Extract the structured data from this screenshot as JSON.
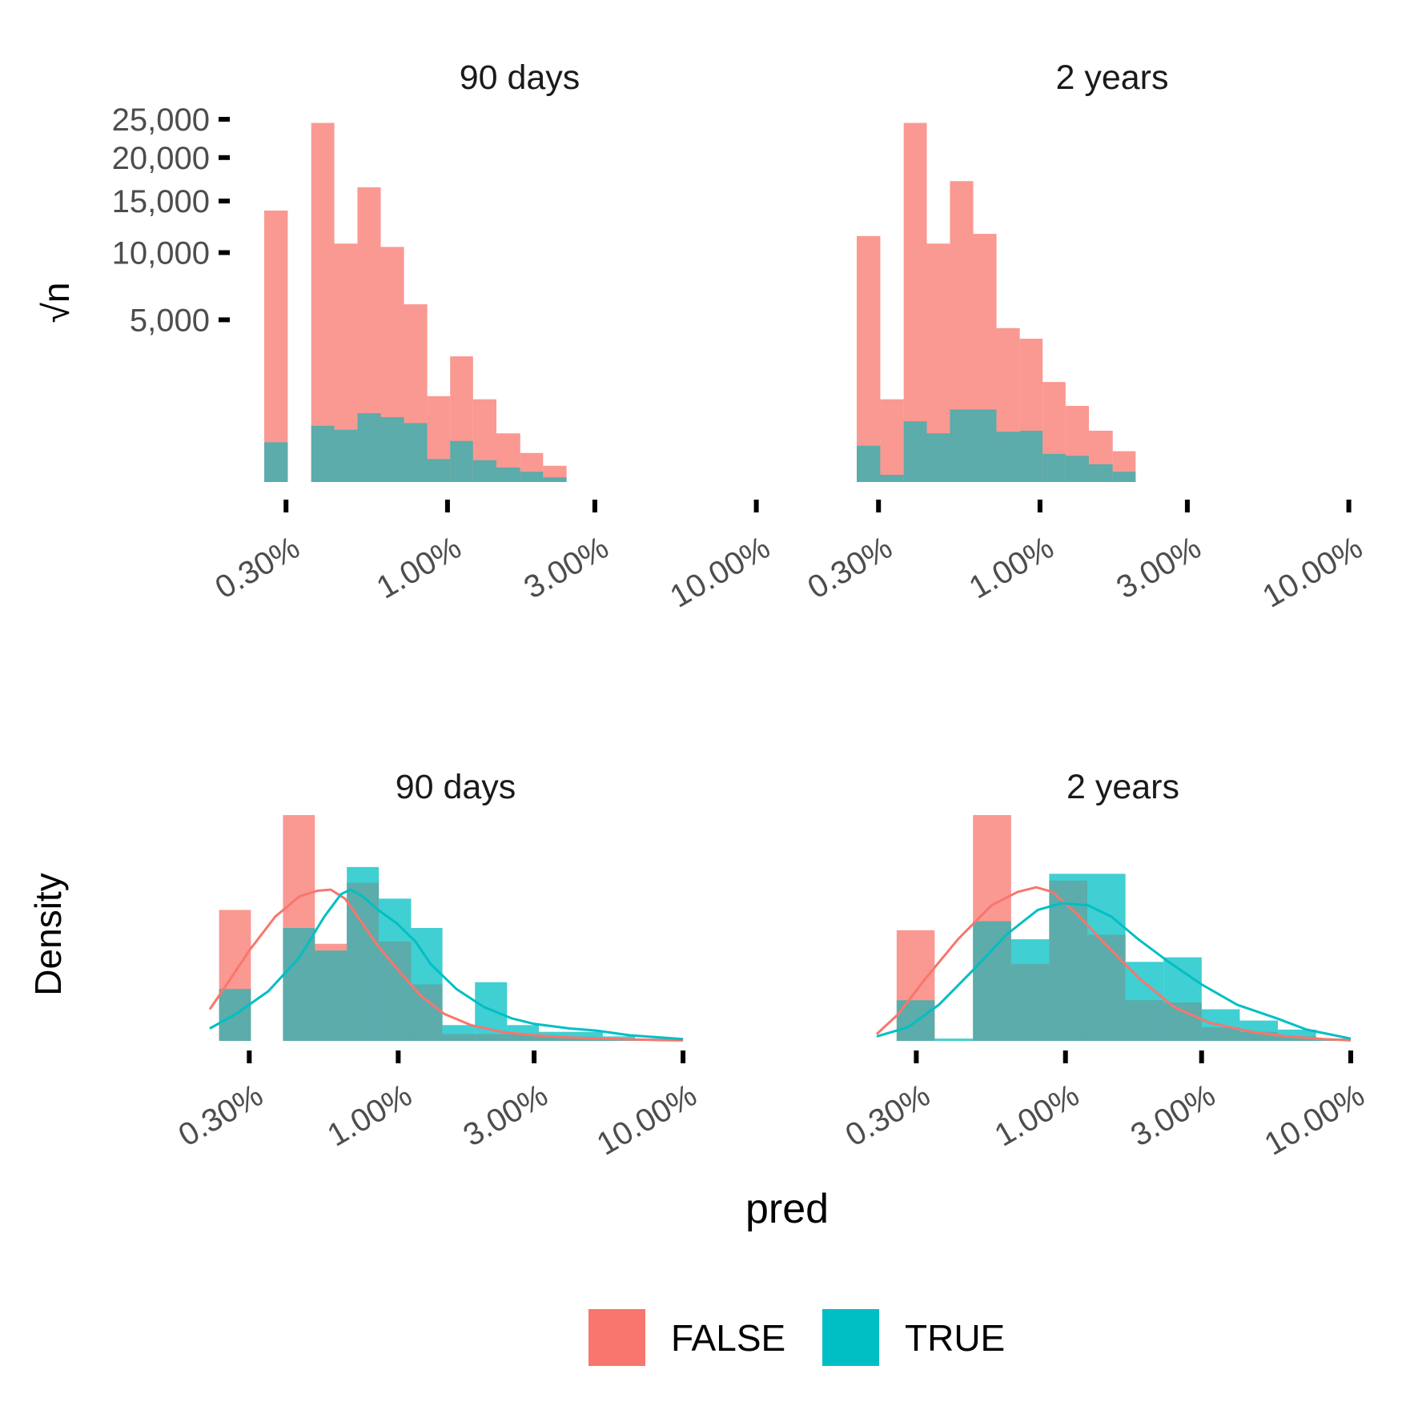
{
  "colors": {
    "FALSE": "#F8766D",
    "TRUE": "#00BFC4",
    "overlap": "#5BACAA",
    "tick": "#000000"
  },
  "shared": {
    "xlabel": "pred",
    "x_ticks": [
      {
        "value": 0.003,
        "label": "0.30%"
      },
      {
        "value": 0.01,
        "label": "1.00%"
      },
      {
        "value": 0.03,
        "label": "3.00%"
      },
      {
        "value": 0.1,
        "label": "10.00%"
      }
    ],
    "x_scale": "log10"
  },
  "legend": {
    "position": "bottom",
    "items": [
      {
        "key": "FALSE",
        "label": "FALSE"
      },
      {
        "key": "TRUE",
        "label": "TRUE"
      }
    ]
  },
  "chart_data": [
    {
      "type": "bar",
      "row": "top",
      "panels": [
        {
          "title": "90 days",
          "xlim": [
            0.00255,
            0.115
          ],
          "bins": [
            {
              "x0": 0.00255,
              "x1": 0.00304,
              "false": 14000,
              "true": 300
            },
            {
              "x0": 0.00362,
              "x1": 0.0043,
              "false": 24500,
              "true": 600
            },
            {
              "x0": 0.0043,
              "x1": 0.00511,
              "false": 10800,
              "true": 520
            },
            {
              "x0": 0.00511,
              "x1": 0.00608,
              "false": 16500,
              "true": 900
            },
            {
              "x0": 0.00608,
              "x1": 0.00723,
              "false": 10500,
              "true": 800
            },
            {
              "x0": 0.00723,
              "x1": 0.0086,
              "false": 6000,
              "true": 660
            },
            {
              "x0": 0.0086,
              "x1": 0.0102,
              "false": 1400,
              "true": 100
            },
            {
              "x0": 0.0102,
              "x1": 0.0121,
              "false": 3000,
              "true": 320
            },
            {
              "x0": 0.0121,
              "x1": 0.0144,
              "false": 1300,
              "true": 90
            },
            {
              "x0": 0.0144,
              "x1": 0.0172,
              "false": 450,
              "true": 40
            },
            {
              "x0": 0.0172,
              "x1": 0.0204,
              "false": 160,
              "true": 20
            },
            {
              "x0": 0.0204,
              "x1": 0.0243,
              "false": 50,
              "true": 4
            }
          ],
          "ylabel": "√n",
          "y_scale": "sqrt",
          "ylim": [
            0,
            26000
          ],
          "y_ticks": [
            {
              "value": 5000,
              "label": "5,000"
            },
            {
              "value": 10000,
              "label": "10,000"
            },
            {
              "value": 15000,
              "label": "15,000"
            },
            {
              "value": 20000,
              "label": "20,000"
            },
            {
              "value": 25000,
              "label": "25,000"
            }
          ]
        },
        {
          "title": "2 years",
          "xlim": [
            0.00255,
            0.115
          ],
          "bins": [
            {
              "x0": 0.00255,
              "x1": 0.00304,
              "false": 11500,
              "true": 250
            },
            {
              "x0": 0.00304,
              "x1": 0.00362,
              "false": 1300,
              "true": 10
            },
            {
              "x0": 0.00362,
              "x1": 0.0043,
              "false": 24500,
              "true": 700
            },
            {
              "x0": 0.0043,
              "x1": 0.00511,
              "false": 10800,
              "true": 450
            },
            {
              "x0": 0.00511,
              "x1": 0.00608,
              "false": 17200,
              "true": 1000
            },
            {
              "x0": 0.00608,
              "x1": 0.00723,
              "false": 11700,
              "true": 1000
            },
            {
              "x0": 0.00723,
              "x1": 0.0086,
              "false": 4500,
              "true": 480
            },
            {
              "x0": 0.0086,
              "x1": 0.0102,
              "false": 3900,
              "true": 500
            },
            {
              "x0": 0.0102,
              "x1": 0.0121,
              "false": 1900,
              "true": 150
            },
            {
              "x0": 0.0121,
              "x1": 0.0144,
              "false": 1100,
              "true": 130
            },
            {
              "x0": 0.0144,
              "x1": 0.0172,
              "false": 500,
              "true": 60
            },
            {
              "x0": 0.0172,
              "x1": 0.0204,
              "false": 180,
              "true": 20
            }
          ]
        }
      ]
    },
    {
      "type": "area",
      "row": "bottom",
      "ylabel": "Density",
      "panels": [
        {
          "title": "90 days",
          "xlim": [
            0.00218,
            0.116
          ],
          "bins": [
            {
              "x0": 0.00235,
              "x1": 0.00304,
              "false": 0.58,
              "true": 0.23
            },
            {
              "x0": 0.00304,
              "x1": 0.00394,
              "false": 0,
              "true": 0
            },
            {
              "x0": 0.00394,
              "x1": 0.0051,
              "false": 1.0,
              "true": 0.5
            },
            {
              "x0": 0.0051,
              "x1": 0.0066,
              "false": 0.43,
              "true": 0.4
            },
            {
              "x0": 0.0066,
              "x1": 0.00855,
              "false": 0.7,
              "true": 0.77
            },
            {
              "x0": 0.00855,
              "x1": 0.0111,
              "false": 0.44,
              "true": 0.63
            },
            {
              "x0": 0.0111,
              "x1": 0.0143,
              "false": 0.25,
              "true": 0.5
            },
            {
              "x0": 0.0143,
              "x1": 0.0186,
              "false": 0.03,
              "true": 0.07
            },
            {
              "x0": 0.0186,
              "x1": 0.0241,
              "false": 0.03,
              "true": 0.26
            },
            {
              "x0": 0.0241,
              "x1": 0.0312,
              "false": 0.03,
              "true": 0.07
            },
            {
              "x0": 0.0312,
              "x1": 0.0404,
              "false": 0.02,
              "true": 0.04
            },
            {
              "x0": 0.0404,
              "x1": 0.0523,
              "false": 0.01,
              "true": 0.04
            },
            {
              "x0": 0.0523,
              "x1": 0.0678,
              "false": 0.005,
              "true": 0.02
            },
            {
              "x0": 0.0678,
              "x1": 0.0878,
              "false": 0.003,
              "true": 0.01
            }
          ],
          "kde": {
            "false": [
              [
                0.00218,
                0.14
              ],
              [
                0.0025,
                0.25
              ],
              [
                0.003,
                0.4
              ],
              [
                0.0037,
                0.55
              ],
              [
                0.0045,
                0.64
              ],
              [
                0.0052,
                0.665
              ],
              [
                0.0058,
                0.67
              ],
              [
                0.0065,
                0.63
              ],
              [
                0.0075,
                0.52
              ],
              [
                0.0085,
                0.42
              ],
              [
                0.0099,
                0.32
              ],
              [
                0.012,
                0.2
              ],
              [
                0.0145,
                0.12
              ],
              [
                0.018,
                0.07
              ],
              [
                0.023,
                0.04
              ],
              [
                0.03,
                0.025
              ],
              [
                0.04,
                0.015
              ],
              [
                0.06,
                0.008
              ],
              [
                0.08,
                0.004
              ],
              [
                0.1,
                0.002
              ]
            ],
            "true": [
              [
                0.00218,
                0.055
              ],
              [
                0.0027,
                0.12
              ],
              [
                0.0035,
                0.22
              ],
              [
                0.0045,
                0.37
              ],
              [
                0.0055,
                0.55
              ],
              [
                0.0063,
                0.65
              ],
              [
                0.0068,
                0.67
              ],
              [
                0.0075,
                0.64
              ],
              [
                0.0085,
                0.58
              ],
              [
                0.0099,
                0.52
              ],
              [
                0.0115,
                0.44
              ],
              [
                0.013,
                0.34
              ],
              [
                0.016,
                0.23
              ],
              [
                0.02,
                0.15
              ],
              [
                0.025,
                0.1
              ],
              [
                0.03,
                0.075
              ],
              [
                0.04,
                0.055
              ],
              [
                0.05,
                0.045
              ],
              [
                0.065,
                0.025
              ],
              [
                0.1,
                0.008
              ]
            ]
          }
        },
        {
          "title": "2 years",
          "xlim": [
            0.00218,
            0.116
          ],
          "bins": [
            {
              "x0": 0.00256,
              "x1": 0.00348,
              "false": 0.49,
              "true": 0.18
            },
            {
              "x0": 0.00348,
              "x1": 0.00474,
              "false": 0,
              "true": 0.01
            },
            {
              "x0": 0.00474,
              "x1": 0.00645,
              "false": 1.0,
              "true": 0.53
            },
            {
              "x0": 0.00645,
              "x1": 0.00877,
              "false": 0.34,
              "true": 0.45
            },
            {
              "x0": 0.00877,
              "x1": 0.01193,
              "false": 0.71,
              "true": 0.74
            },
            {
              "x0": 0.01193,
              "x1": 0.01623,
              "false": 0.47,
              "true": 0.74
            },
            {
              "x0": 0.01623,
              "x1": 0.02207,
              "false": 0.18,
              "true": 0.35
            },
            {
              "x0": 0.02207,
              "x1": 0.03002,
              "false": 0.17,
              "true": 0.37
            },
            {
              "x0": 0.03002,
              "x1": 0.04083,
              "false": 0.06,
              "true": 0.14
            },
            {
              "x0": 0.04083,
              "x1": 0.05554,
              "false": 0.04,
              "true": 0.09
            },
            {
              "x0": 0.05554,
              "x1": 0.07554,
              "false": 0.02,
              "true": 0.05
            },
            {
              "x0": 0.07554,
              "x1": 0.1,
              "false": 0.01,
              "true": 0.01
            }
          ],
          "kde": {
            "false": [
              [
                0.00218,
                0.03
              ],
              [
                0.0026,
                0.12
              ],
              [
                0.0032,
                0.27
              ],
              [
                0.0042,
                0.45
              ],
              [
                0.0055,
                0.6
              ],
              [
                0.0068,
                0.66
              ],
              [
                0.0079,
                0.68
              ],
              [
                0.009,
                0.66
              ],
              [
                0.011,
                0.56
              ],
              [
                0.014,
                0.42
              ],
              [
                0.018,
                0.28
              ],
              [
                0.024,
                0.15
              ],
              [
                0.032,
                0.08
              ],
              [
                0.045,
                0.04
              ],
              [
                0.06,
                0.02
              ],
              [
                0.08,
                0.008
              ],
              [
                0.1,
                0.003
              ]
            ],
            "true": [
              [
                0.00218,
                0.02
              ],
              [
                0.0028,
                0.06
              ],
              [
                0.0036,
                0.16
              ],
              [
                0.0048,
                0.32
              ],
              [
                0.0062,
                0.47
              ],
              [
                0.008,
                0.58
              ],
              [
                0.0097,
                0.61
              ],
              [
                0.012,
                0.6
              ],
              [
                0.0145,
                0.55
              ],
              [
                0.018,
                0.45
              ],
              [
                0.023,
                0.35
              ],
              [
                0.03,
                0.25
              ],
              [
                0.04,
                0.16
              ],
              [
                0.055,
                0.1
              ],
              [
                0.07,
                0.05
              ],
              [
                0.1,
                0.01
              ]
            ]
          }
        }
      ]
    }
  ]
}
